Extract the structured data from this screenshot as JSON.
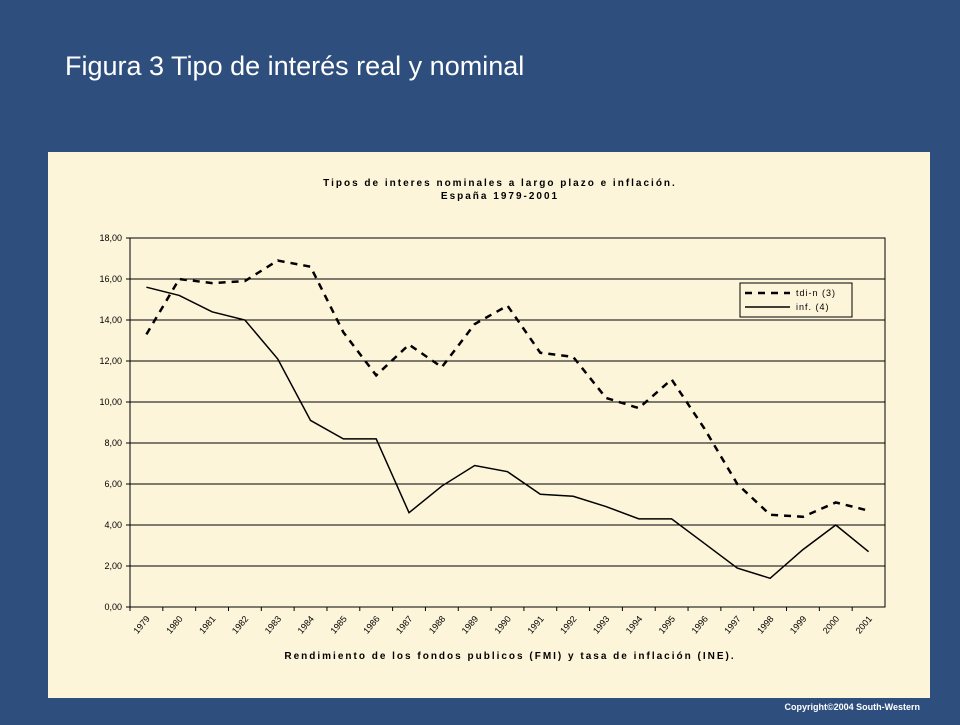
{
  "header": {
    "title": "Figura 3 Tipo de interés real y  nominal"
  },
  "chart_data": {
    "type": "line",
    "title": "Tipos de interes nominales a largo plazo e inflación.",
    "subtitle": "España 1979-2001",
    "x_label": "Rendimiento de los fondos publicos (FMI) y tasa de inflación (INE).",
    "categories": [
      "1979",
      "1980",
      "1981",
      "1982",
      "1983",
      "1984",
      "1985",
      "1986",
      "1987",
      "1988",
      "1989",
      "1990",
      "1991",
      "1992",
      "1993",
      "1994",
      "1995",
      "1996",
      "1997",
      "1998",
      "1999",
      "2000",
      "2001"
    ],
    "series": [
      {
        "name": "tdi-n (3)",
        "color": "#000000",
        "dashed": true,
        "values": [
          13.3,
          16.0,
          15.8,
          15.9,
          16.9,
          16.6,
          13.4,
          11.3,
          12.8,
          11.7,
          13.8,
          14.7,
          12.4,
          12.2,
          10.2,
          9.7,
          11.1,
          8.7,
          6.0,
          4.5,
          4.4,
          5.1,
          4.7
        ]
      },
      {
        "name": "inf. (4)",
        "color": "#000000",
        "dashed": false,
        "values": [
          15.6,
          15.2,
          14.4,
          14.0,
          12.1,
          9.1,
          8.2,
          8.2,
          4.6,
          5.9,
          6.9,
          6.6,
          5.5,
          5.4,
          4.9,
          4.3,
          4.3,
          3.1,
          1.9,
          1.4,
          2.8,
          4.0,
          2.7
        ]
      }
    ],
    "ylim": [
      0,
      18
    ],
    "yticks": [
      {
        "value": 0,
        "label": "0,00"
      },
      {
        "value": 2,
        "label": "2,00"
      },
      {
        "value": 4,
        "label": "4,00"
      },
      {
        "value": 6,
        "label": "6,00"
      },
      {
        "value": 8,
        "label": "8,00"
      },
      {
        "value": 10,
        "label": "10,00"
      },
      {
        "value": 12,
        "label": "12,00"
      },
      {
        "value": 14,
        "label": "14,00"
      },
      {
        "value": 16,
        "label": "16,00"
      },
      {
        "value": 18,
        "label": "18,00"
      }
    ],
    "grid": true,
    "legend": "upper right"
  },
  "footer": {
    "copyright": "Copyright©2004  South-Western"
  }
}
